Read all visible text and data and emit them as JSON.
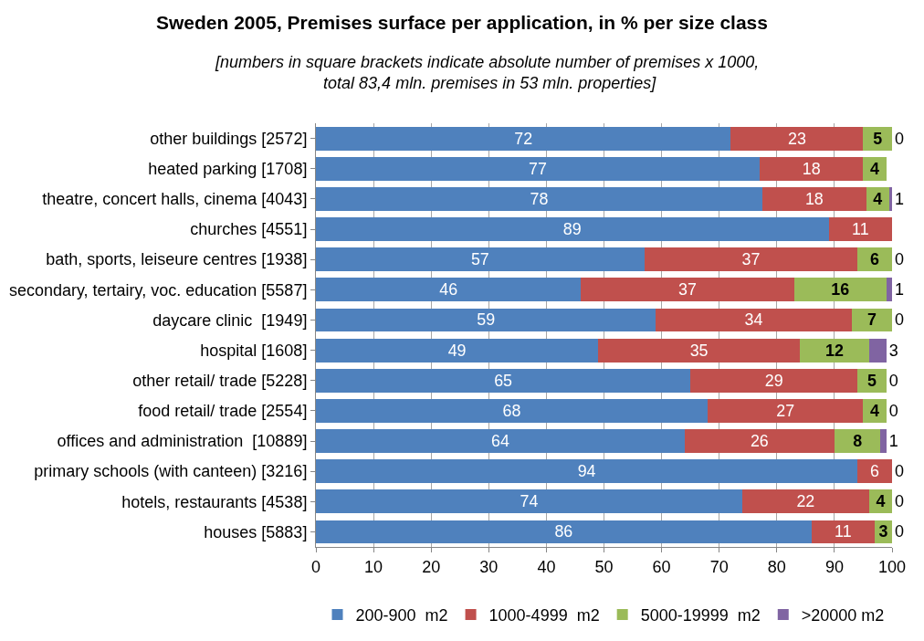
{
  "chart_data": {
    "type": "bar",
    "orientation": "horizontal",
    "stacked": true,
    "title": "Sweden 2005, Premises surface per application, in % per size class",
    "subtitle": "[numbers in square brackets indicate absolute number of premises x 1000,  total 83,4 mln. premises in 53 mln. properties]",
    "categories": [
      "other buildings [2572]",
      "heated parking [1708]",
      "theatre, concert halls, cinema [4043]",
      "churches [4551]",
      "bath, sports, leiseure centres [1938]",
      "secondary, tertairy, voc. education [5587]",
      "daycare clinic  [1949]",
      "hospital [1608]",
      "other retail/ trade [5228]",
      "food retail/ trade [2554]",
      "offices and administration  [10889]",
      "primary schools (with canteen) [3216]",
      "hotels, restaurants [4538]",
      "houses [5883]"
    ],
    "series": [
      {
        "name": "200-900  m2",
        "color": "#4f81bd",
        "values": [
          72,
          77,
          77.5,
          89,
          57,
          46,
          59,
          49,
          65,
          68,
          64,
          94,
          74,
          86
        ],
        "value_labels": [
          "72",
          "77",
          "78",
          "89",
          "57",
          "46",
          "59",
          "49",
          "65",
          "68",
          "64",
          "94",
          "74",
          "86"
        ]
      },
      {
        "name": "1000-4999  m2",
        "color": "#c0504d",
        "values": [
          23,
          18,
          18,
          11,
          37,
          37,
          34,
          35,
          29,
          27,
          26,
          6,
          22,
          11
        ],
        "value_labels": [
          "23",
          "18",
          "18",
          "11",
          "37",
          "37",
          "34",
          "35",
          "29",
          "27",
          "26",
          "6",
          "22",
          "11"
        ]
      },
      {
        "name": "5000-19999  m2",
        "color": "#9bbb59",
        "values": [
          5,
          4,
          4,
          0,
          6,
          16,
          7,
          12,
          5,
          4,
          8,
          0,
          4,
          3
        ],
        "value_labels": [
          "5",
          "4",
          "4",
          null,
          "6",
          "16",
          "7",
          "12",
          "5",
          "4",
          "8",
          null,
          "4",
          "3"
        ]
      },
      {
        "name": ">20000 m2",
        "color": "#8064a2",
        "values": [
          0,
          0,
          0.5,
          0,
          0,
          1,
          0,
          3,
          0,
          0,
          1,
          0,
          0,
          0
        ],
        "value_labels": [
          "0",
          null,
          "1",
          null,
          "0",
          "1",
          "0",
          "3",
          "0",
          "0",
          "1",
          "0",
          "0",
          "0"
        ]
      }
    ],
    "xlim": [
      0,
      100
    ],
    "xticks": [
      0,
      10,
      20,
      30,
      40,
      50,
      60,
      70,
      80,
      90,
      100
    ],
    "grid": "x",
    "legend": "bottom"
  }
}
